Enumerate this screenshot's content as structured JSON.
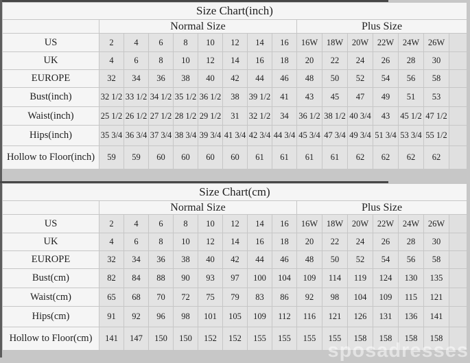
{
  "watermark": "sposadresses",
  "colors": {
    "page_bg": "#c7c7c7",
    "data_cell_bg": "#e3e3e3",
    "header_cell_bg": "#f5f5f5",
    "grid_border": "#c6c6c6",
    "text": "#1e1e1e",
    "watermark_color": "#ffffff"
  },
  "chart_data": [
    {
      "type": "table",
      "title": "Size Chart(inch)",
      "group_headers": {
        "normal": "Normal Size",
        "plus": "Plus Size"
      },
      "rows": [
        {
          "label": "US",
          "normal": [
            "2",
            "4",
            "6",
            "8",
            "10",
            "12",
            "14",
            "16"
          ],
          "plus": [
            "16W",
            "18W",
            "20W",
            "22W",
            "24W",
            "26W"
          ]
        },
        {
          "label": "UK",
          "normal": [
            "4",
            "6",
            "8",
            "10",
            "12",
            "14",
            "16",
            "18"
          ],
          "plus": [
            "20",
            "22",
            "24",
            "26",
            "28",
            "30"
          ]
        },
        {
          "label": "EUROPE",
          "normal": [
            "32",
            "34",
            "36",
            "38",
            "40",
            "42",
            "44",
            "46"
          ],
          "plus": [
            "48",
            "50",
            "52",
            "54",
            "56",
            "58"
          ]
        },
        {
          "label": "Bust(inch)",
          "normal": [
            "32 1/2",
            "33 1/2",
            "34 1/2",
            "35 1/2",
            "36 1/2",
            "38",
            "39 1/2",
            "41"
          ],
          "plus": [
            "43",
            "45",
            "47",
            "49",
            "51",
            "53"
          ]
        },
        {
          "label": "Waist(inch)",
          "normal": [
            "25 1/2",
            "26 1/2",
            "27 1/2",
            "28 1/2",
            "29 1/2",
            "31",
            "32 1/2",
            "34"
          ],
          "plus": [
            "36 1/2",
            "38 1/2",
            "40 3/4",
            "43",
            "45 1/2",
            "47 1/2"
          ]
        },
        {
          "label": "Hips(inch)",
          "normal": [
            "35 3/4",
            "36 3/4",
            "37 3/4",
            "38 3/4",
            "39 3/4",
            "41 3/4",
            "42 3/4",
            "44 3/4"
          ],
          "plus": [
            "45 3/4",
            "47 3/4",
            "49 3/4",
            "51 3/4",
            "53 3/4",
            "55 1/2"
          ]
        },
        {
          "label": "Hollow to Floor(inch)",
          "normal": [
            "59",
            "59",
            "60",
            "60",
            "60",
            "60",
            "61",
            "61"
          ],
          "plus": [
            "61",
            "61",
            "62",
            "62",
            "62",
            "62"
          ]
        }
      ]
    },
    {
      "type": "table",
      "title": "Size Chart(cm)",
      "group_headers": {
        "normal": "Normal Size",
        "plus": "Plus Size"
      },
      "rows": [
        {
          "label": "US",
          "normal": [
            "2",
            "4",
            "6",
            "8",
            "10",
            "12",
            "14",
            "16"
          ],
          "plus": [
            "16W",
            "18W",
            "20W",
            "22W",
            "24W",
            "26W"
          ]
        },
        {
          "label": "UK",
          "normal": [
            "4",
            "6",
            "8",
            "10",
            "12",
            "14",
            "16",
            "18"
          ],
          "plus": [
            "20",
            "22",
            "24",
            "26",
            "28",
            "30"
          ]
        },
        {
          "label": "EUROPE",
          "normal": [
            "32",
            "34",
            "36",
            "38",
            "40",
            "42",
            "44",
            "46"
          ],
          "plus": [
            "48",
            "50",
            "52",
            "54",
            "56",
            "58"
          ]
        },
        {
          "label": "Bust(cm)",
          "normal": [
            "82",
            "84",
            "88",
            "90",
            "93",
            "97",
            "100",
            "104"
          ],
          "plus": [
            "109",
            "114",
            "119",
            "124",
            "130",
            "135"
          ]
        },
        {
          "label": "Waist(cm)",
          "normal": [
            "65",
            "68",
            "70",
            "72",
            "75",
            "79",
            "83",
            "86"
          ],
          "plus": [
            "92",
            "98",
            "104",
            "109",
            "115",
            "121"
          ]
        },
        {
          "label": "Hips(cm)",
          "normal": [
            "91",
            "92",
            "96",
            "98",
            "101",
            "105",
            "109",
            "112"
          ],
          "plus": [
            "116",
            "121",
            "126",
            "131",
            "136",
            "141"
          ]
        },
        {
          "label": "Hollow to Floor(cm)",
          "normal": [
            "141",
            "147",
            "150",
            "150",
            "152",
            "152",
            "155",
            "155"
          ],
          "plus": [
            "155",
            "155",
            "158",
            "158",
            "158",
            "158"
          ]
        }
      ]
    }
  ]
}
